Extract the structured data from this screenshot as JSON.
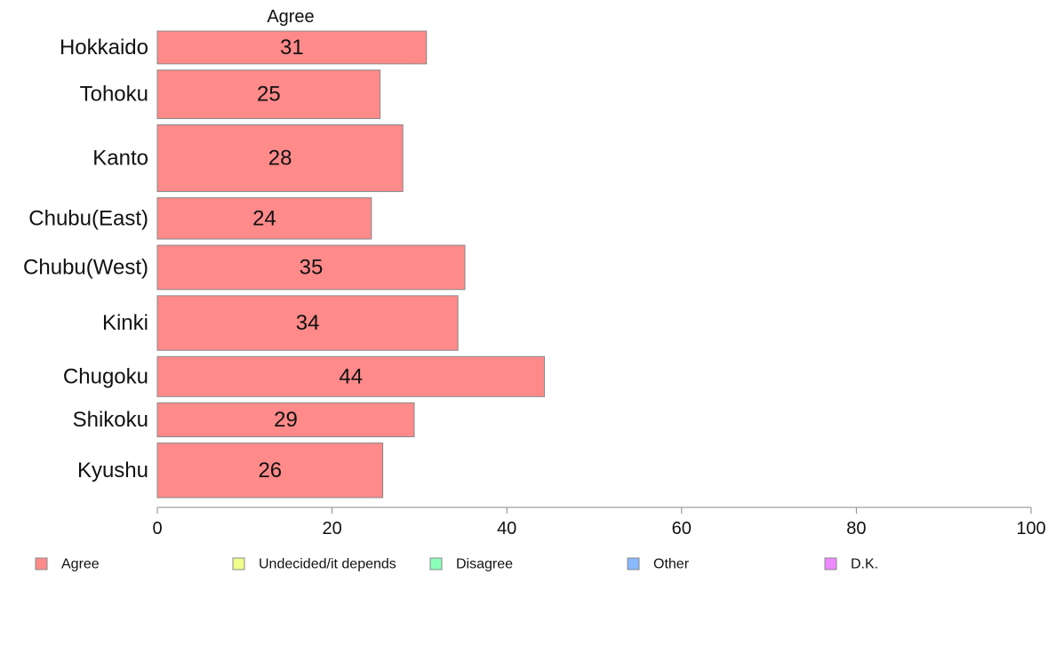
{
  "chart_data": {
    "type": "bar",
    "orientation": "horizontal",
    "title": "",
    "column_title": "Agree",
    "xlabel": "",
    "ylabel": "",
    "xlim": [
      0,
      100
    ],
    "x_ticks": [
      0,
      20,
      40,
      60,
      80,
      100
    ],
    "x_tick_labels": [
      "0",
      "20",
      "40",
      "60",
      "80",
      "100"
    ],
    "grid": false,
    "categories": [
      "Hokkaido",
      "Tohoku",
      "Kanto",
      "Chubu(East)",
      "Chubu(West)",
      "Kinki",
      "Chugoku",
      "Shikoku",
      "Kyushu"
    ],
    "category_weights": [
      0.54,
      0.8,
      1.1,
      0.68,
      0.73,
      0.9,
      0.66,
      0.56,
      0.9
    ],
    "series": [
      {
        "name": "Agree",
        "values": [
          30.8,
          25.5,
          28.1,
          24.5,
          35.2,
          34.4,
          44.3,
          29.4,
          25.8
        ],
        "labels": [
          "31",
          "25",
          "28",
          "24",
          "35",
          "34",
          "44",
          "29",
          "26"
        ],
        "color": "#ff8a8a"
      }
    ],
    "legend": {
      "position": "bottom",
      "entries": [
        {
          "label": "Agree",
          "color": "#ff8a8a"
        },
        {
          "label": "Undecided/it depends",
          "color": "#eeff8a"
        },
        {
          "label": "Disagree",
          "color": "#8affb8"
        },
        {
          "label": "Other",
          "color": "#8ab8ff"
        },
        {
          "label": "D.K.",
          "color": "#ee8aff"
        }
      ]
    },
    "colors": {
      "bar_stroke": "#888888",
      "axis": "#888888"
    }
  }
}
